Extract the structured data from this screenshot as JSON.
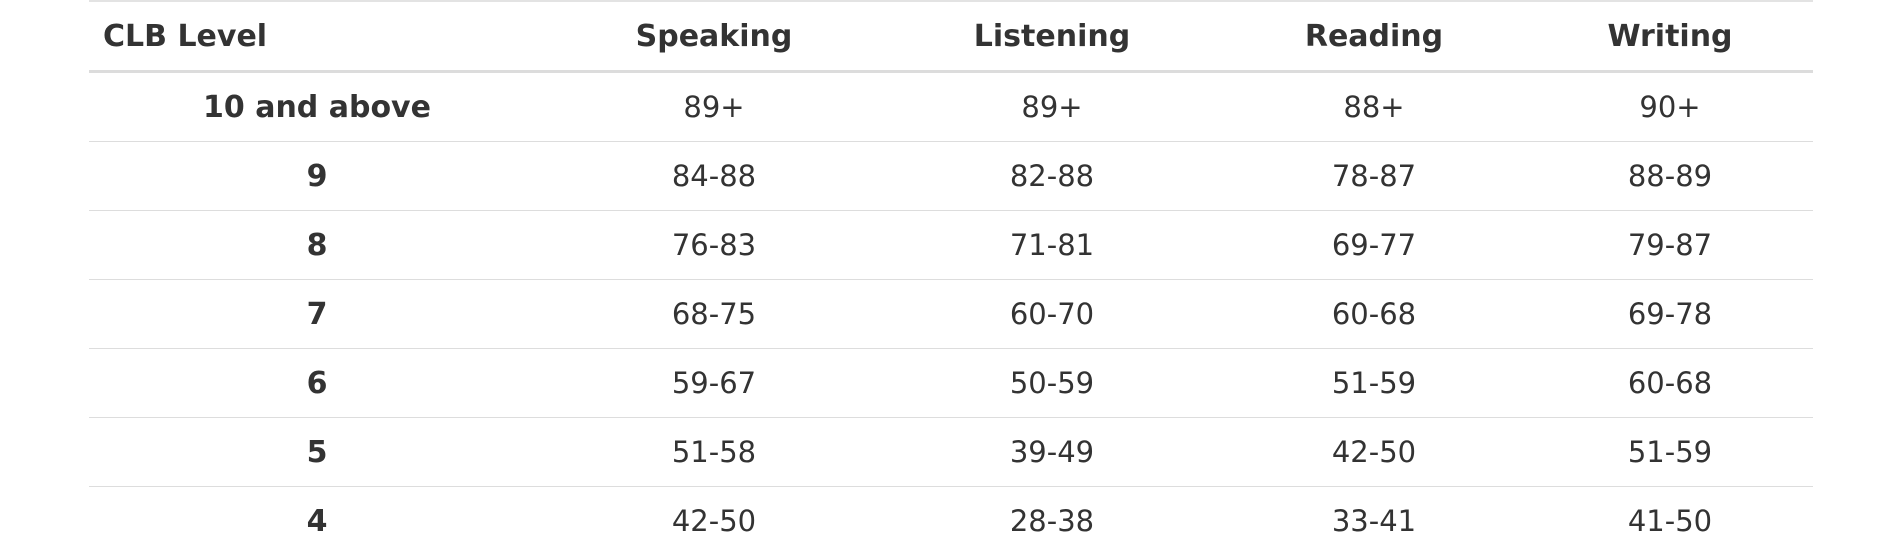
{
  "table": {
    "headers": [
      "CLB Level",
      "Speaking",
      "Listening",
      "Reading",
      "Writing"
    ],
    "rows": [
      [
        "10 and above",
        "89+",
        "89+",
        "88+",
        "90+"
      ],
      [
        "9",
        "84-88",
        "82-88",
        "78-87",
        "88-89"
      ],
      [
        "8",
        "76-83",
        "71-81",
        "69-77",
        "79-87"
      ],
      [
        "7",
        "68-75",
        "60-70",
        "60-68",
        "69-78"
      ],
      [
        "6",
        "59-67",
        "50-59",
        "51-59",
        "60-68"
      ],
      [
        "5",
        "51-58",
        "39-49",
        "42-50",
        "51-59"
      ],
      [
        "4",
        "42-50",
        "28-38",
        "33-41",
        "41-50"
      ]
    ]
  }
}
